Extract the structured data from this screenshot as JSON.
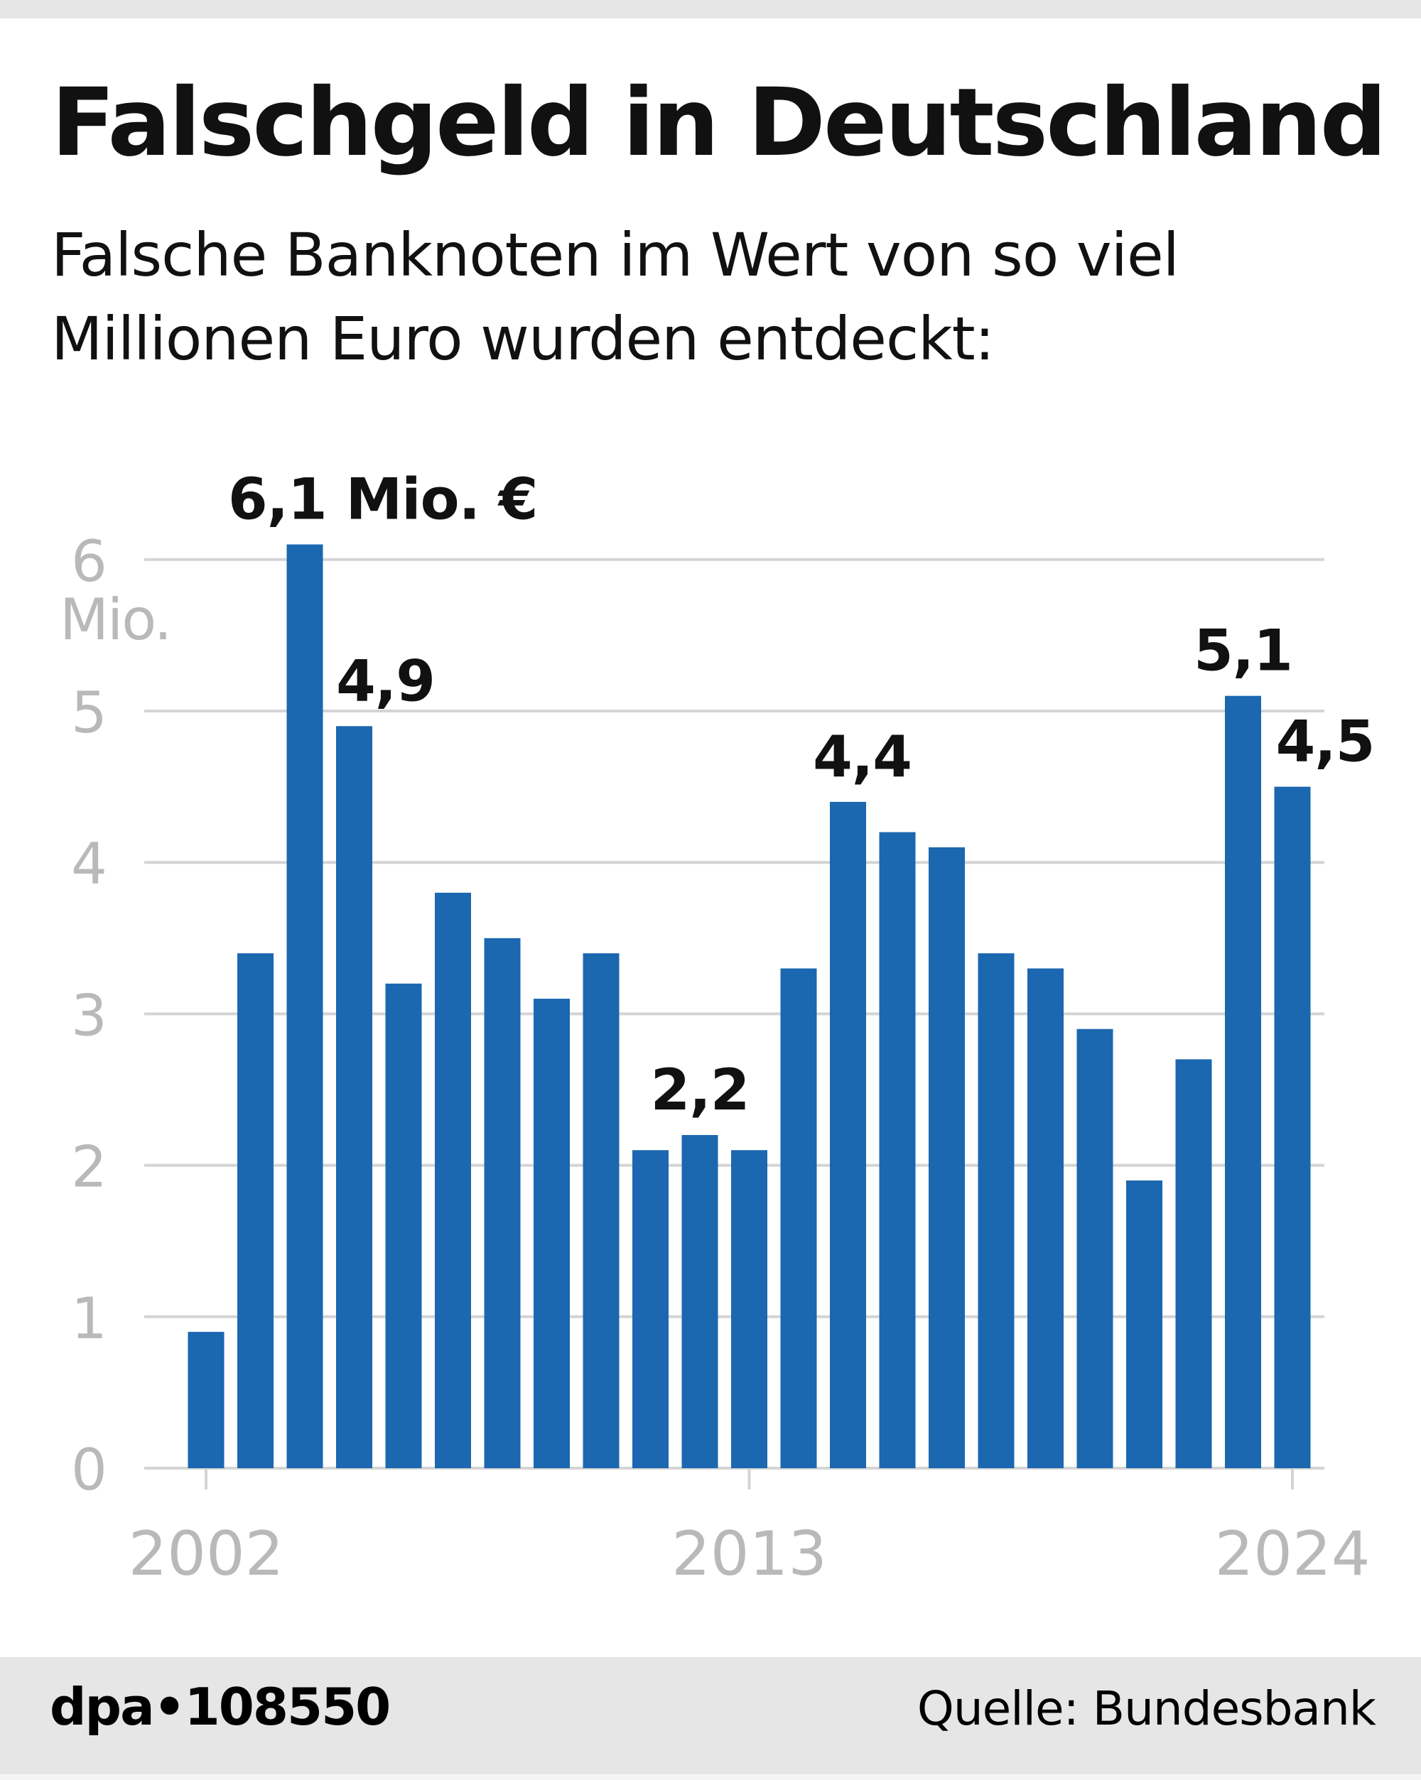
{
  "header": {
    "title": "Falschgeld in Deutschland",
    "subtitle": "Falsche Banknoten im Wert von so viel Millionen Euro wurden entdeckt:"
  },
  "chart_data": {
    "type": "bar",
    "title": "Falschgeld in Deutschland",
    "xlabel": "",
    "ylabel": "Mio.",
    "ylim": [
      0,
      6
    ],
    "yticks": [
      "0",
      "1",
      "2",
      "3",
      "4",
      "5",
      "6"
    ],
    "yunit_label": "Mio.",
    "xtick_labels": [
      {
        "year": 2002,
        "label": "2002"
      },
      {
        "year": 2013,
        "label": "2013"
      },
      {
        "year": 2024,
        "label": "2024"
      }
    ],
    "categories": [
      2002,
      2003,
      2004,
      2005,
      2006,
      2007,
      2008,
      2009,
      2010,
      2011,
      2012,
      2013,
      2014,
      2015,
      2016,
      2017,
      2018,
      2019,
      2020,
      2021,
      2022,
      2023,
      2024
    ],
    "values": [
      0.9,
      3.4,
      6.1,
      4.9,
      3.2,
      3.8,
      3.5,
      3.1,
      3.4,
      2.1,
      2.2,
      2.1,
      3.3,
      4.4,
      4.2,
      4.1,
      3.4,
      3.3,
      2.9,
      1.9,
      2.7,
      5.1,
      4.5
    ],
    "data_labels": [
      {
        "index": 2,
        "text": "6,1 Mio. €"
      },
      {
        "index": 3,
        "text": "4,9"
      },
      {
        "index": 10,
        "text": "2,2"
      },
      {
        "index": 13,
        "text": "4,4"
      },
      {
        "index": 21,
        "text": "5,1"
      },
      {
        "index": 22,
        "text": "4,5"
      }
    ],
    "grid": true,
    "colors": {
      "bar": "#1b67b0",
      "grid": "#d4d4d4",
      "tick": "#b9b9b9"
    }
  },
  "footer": {
    "credit": "dpa•108550",
    "source": "Quelle: Bundesbank"
  }
}
